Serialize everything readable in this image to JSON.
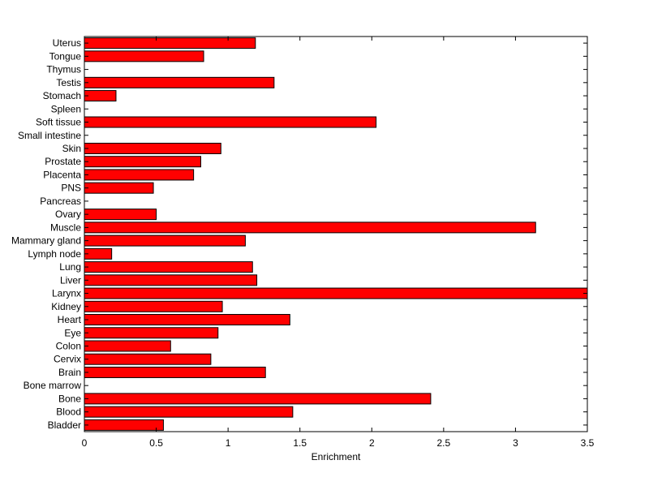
{
  "chart_data": {
    "type": "bar",
    "orientation": "horizontal",
    "title": "",
    "xlabel": "Enrichment",
    "ylabel": "",
    "xlim": [
      0,
      3.5
    ],
    "xticks": [
      "0",
      "0.5",
      "1",
      "1.5",
      "2",
      "2.5",
      "3",
      "3.5"
    ],
    "grid": false,
    "bar_color": "#ff0000",
    "categories": [
      "Bladder",
      "Blood",
      "Bone",
      "Bone marrow",
      "Brain",
      "Cervix",
      "Colon",
      "Eye",
      "Heart",
      "Kidney",
      "Larynx",
      "Liver",
      "Lung",
      "Lymph node",
      "Mammary gland",
      "Muscle",
      "Ovary",
      "Pancreas",
      "PNS",
      "Placenta",
      "Prostate",
      "Skin",
      "Small intestine",
      "Soft tissue",
      "Spleen",
      "Stomach",
      "Testis",
      "Thymus",
      "Tongue",
      "Uterus"
    ],
    "values": [
      0.55,
      1.45,
      2.41,
      0,
      1.26,
      0.88,
      0.6,
      0.93,
      1.43,
      0.96,
      3.5,
      1.2,
      1.17,
      0.19,
      1.12,
      3.14,
      0.5,
      0,
      0.48,
      0.76,
      0.81,
      0.95,
      0,
      2.03,
      0,
      0.22,
      1.32,
      0,
      0.83,
      1.19
    ]
  }
}
